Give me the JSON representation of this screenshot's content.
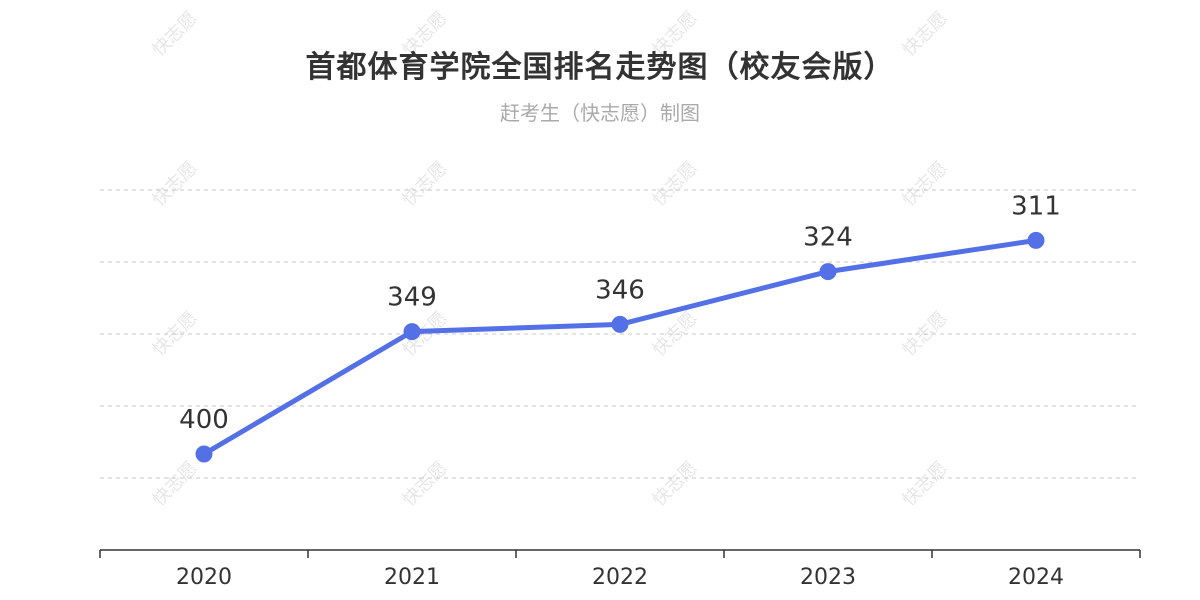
{
  "header": {
    "title": "首都体育学院全国排名走势图（校友会版）",
    "subtitle": "赶考生（快志愿）制图"
  },
  "watermark": {
    "text": "快志愿"
  },
  "chart_data": {
    "type": "line",
    "categories": [
      "2020",
      "2021",
      "2022",
      "2023",
      "2024"
    ],
    "values": [
      400,
      349,
      346,
      324,
      311
    ],
    "data_labels": [
      "400",
      "349",
      "346",
      "324",
      "311"
    ],
    "ylim": [
      440,
      290
    ],
    "y_axis_inverted": true,
    "grid": true,
    "legend": "none",
    "colors": {
      "line": "#5470e6",
      "grid": "#c8c8c8",
      "axis": "#333333",
      "label": "#333333"
    }
  }
}
